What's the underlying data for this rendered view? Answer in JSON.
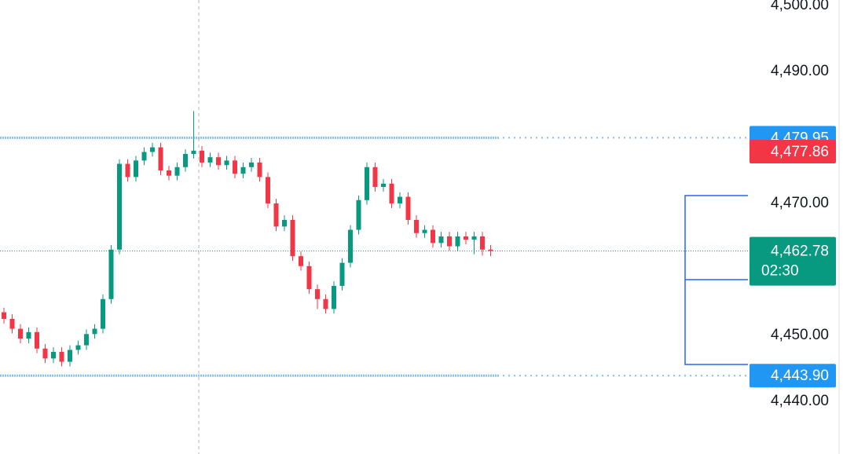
{
  "chart_data": {
    "type": "candlestick",
    "ylim": [
      4432.02,
      4500.83
    ],
    "yticks": [
      {
        "value": 4440,
        "label": "4,440.00"
      },
      {
        "value": 4450,
        "label": "4,450.00"
      },
      {
        "value": 4470,
        "label": "4,470.00"
      },
      {
        "value": 4490,
        "label": "4,490.00"
      },
      {
        "value": 4500,
        "label": "4,500.00"
      }
    ],
    "up_color": "#089981",
    "down_color": "#f23645",
    "series": {
      "open": [
        4453.5,
        4452.5,
        4451.0,
        4449.5,
        4450.5,
        4448.0,
        4446.5,
        4447.5,
        4446.0,
        4447.8,
        4448.5,
        4450.2,
        4451.0,
        4455.5,
        4463.0,
        4476.0,
        4474.0,
        4476.5,
        4477.8,
        4478.5,
        4475.0,
        4474.2,
        4475.5,
        4477.5,
        4478.0,
        4476.2,
        4477.0,
        4475.8,
        4476.5,
        4474.5,
        4475.5,
        4476.2,
        4474.0,
        4470.0,
        4466.5,
        4467.5,
        4462.0,
        4460.5,
        4457.0,
        4455.5,
        4454.0,
        4457.5,
        4461.0,
        4466.0,
        4470.5,
        4475.5,
        4472.5,
        4473.0,
        4470.0,
        4471.0,
        4467.5,
        4465.5,
        4466.0,
        4464.0,
        4465.0,
        4463.5,
        4465.0,
        4464.5,
        4465.0,
        4463.0
      ],
      "high": [
        4454.2,
        4453.2,
        4451.7,
        4451.2,
        4451.2,
        4448.7,
        4448.2,
        4448.2,
        4448.5,
        4449.2,
        4450.9,
        4451.7,
        4456.2,
        4463.7,
        4476.7,
        4476.7,
        4477.2,
        4478.5,
        4479.2,
        4479.2,
        4475.7,
        4476.2,
        4478.2,
        4484.0,
        4478.7,
        4477.7,
        4477.7,
        4477.2,
        4477.2,
        4476.2,
        4476.9,
        4476.9,
        4474.7,
        4470.7,
        4468.2,
        4468.2,
        4462.7,
        4461.2,
        4457.7,
        4456.2,
        4458.2,
        4461.7,
        4466.7,
        4471.2,
        4476.2,
        4476.2,
        4473.7,
        4473.7,
        4471.7,
        4471.7,
        4468.2,
        4466.7,
        4466.7,
        4465.7,
        4465.7,
        4465.7,
        4465.7,
        4465.7,
        4465.7,
        4463.7
      ],
      "low": [
        4451.8,
        4450.3,
        4448.8,
        4448.8,
        4447.3,
        4445.8,
        4445.8,
        4445.3,
        4445.3,
        4447.1,
        4447.8,
        4449.5,
        4450.3,
        4454.8,
        4462.3,
        4473.3,
        4473.3,
        4475.8,
        4477.1,
        4474.3,
        4473.5,
        4473.5,
        4474.8,
        4476.8,
        4475.5,
        4475.5,
        4475.1,
        4475.1,
        4473.8,
        4473.8,
        4474.8,
        4473.3,
        4469.3,
        4465.8,
        4465.8,
        4461.3,
        4459.8,
        4456.3,
        4454.0,
        4453.3,
        4453.3,
        4456.8,
        4460.3,
        4465.3,
        4469.8,
        4471.8,
        4471.8,
        4469.3,
        4469.3,
        4466.8,
        4464.8,
        4464.8,
        4463.3,
        4463.3,
        4462.8,
        4462.8,
        4463.8,
        4462.3,
        4462.1,
        4462.0
      ],
      "close": [
        4452.5,
        4451.0,
        4449.5,
        4450.5,
        4448.0,
        4446.5,
        4447.5,
        4446.0,
        4447.8,
        4448.5,
        4450.2,
        4451.0,
        4455.5,
        4463.0,
        4476.0,
        4474.0,
        4476.5,
        4477.8,
        4478.5,
        4475.0,
        4474.2,
        4475.5,
        4477.5,
        4478.0,
        4476.2,
        4477.0,
        4475.8,
        4476.5,
        4474.5,
        4475.5,
        4476.2,
        4474.0,
        4470.0,
        4466.5,
        4467.5,
        4462.0,
        4460.5,
        4457.0,
        4455.5,
        4454.0,
        4457.5,
        4461.0,
        4466.0,
        4470.5,
        4475.5,
        4472.5,
        4473.0,
        4470.0,
        4471.0,
        4467.5,
        4465.5,
        4466.0,
        4464.0,
        4465.0,
        4463.5,
        4465.0,
        4464.5,
        4465.0,
        4463.0,
        4462.78
      ]
    },
    "price_lines": [
      {
        "value": 4479.95,
        "label": "4,479.95",
        "color": "#2196f3"
      },
      {
        "value": 4443.9,
        "label": "4,443.90",
        "color": "#2196f3"
      }
    ],
    "markers": [
      {
        "value": 4477.86,
        "label": "4,477.86",
        "color": "#f23645"
      }
    ],
    "last_price": {
      "value": 4462.78,
      "label": "4,462.78",
      "countdown": "02:30",
      "color": "#089981"
    }
  }
}
